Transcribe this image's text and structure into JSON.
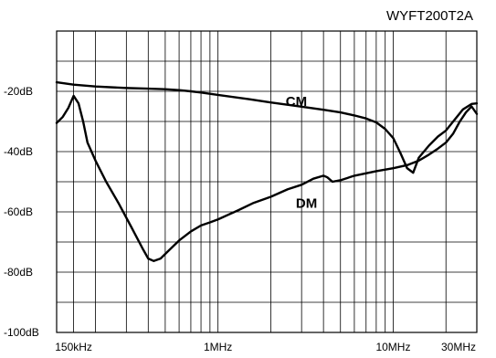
{
  "chart_data": {
    "type": "line",
    "title": "WYFT200T2A",
    "xlabel": "",
    "ylabel": "",
    "xscale": "log",
    "xlim_hz": [
      120000,
      30000000
    ],
    "ylim_db": [
      -100,
      0
    ],
    "y_ticks": [
      {
        "value": -20,
        "label": "-20dB"
      },
      {
        "value": -40,
        "label": "-40dB"
      },
      {
        "value": -60,
        "label": "-60dB"
      },
      {
        "value": -80,
        "label": "-80dB"
      },
      {
        "value": -100,
        "label": "-100dB"
      }
    ],
    "x_ticks": [
      {
        "value": 150000,
        "label": "150kHz"
      },
      {
        "value": 1000000,
        "label": "1MHz"
      },
      {
        "value": 10000000,
        "label": "10MHz"
      },
      {
        "value": 30000000,
        "label": "30MHz"
      }
    ],
    "x_gridlines_hz": [
      150000,
      200000,
      300000,
      400000,
      500000,
      600000,
      700000,
      800000,
      900000,
      1000000,
      2000000,
      3000000,
      4000000,
      5000000,
      6000000,
      7000000,
      8000000,
      9000000,
      10000000,
      20000000,
      30000000
    ],
    "y_gridlines_db": [
      -10,
      -20,
      -30,
      -40,
      -50,
      -60,
      -70,
      -80,
      -90
    ],
    "grid": true,
    "series": [
      {
        "name": "CM",
        "label_at": {
          "x": 2800000,
          "y": -24.8
        },
        "points": [
          [
            120000,
            -17.0
          ],
          [
            150000,
            -17.8
          ],
          [
            200000,
            -18.4
          ],
          [
            300000,
            -18.9
          ],
          [
            400000,
            -19.1
          ],
          [
            500000,
            -19.3
          ],
          [
            600000,
            -19.6
          ],
          [
            700000,
            -20.0
          ],
          [
            800000,
            -20.4
          ],
          [
            1000000,
            -21.2
          ],
          [
            1500000,
            -22.6
          ],
          [
            2000000,
            -23.7
          ],
          [
            3000000,
            -25.1
          ],
          [
            4000000,
            -26.1
          ],
          [
            5000000,
            -27.0
          ],
          [
            6000000,
            -28.0
          ],
          [
            7000000,
            -29.0
          ],
          [
            8000000,
            -30.3
          ],
          [
            9000000,
            -32.5
          ],
          [
            10000000,
            -35.5
          ],
          [
            11000000,
            -40.5
          ],
          [
            12000000,
            -45.5
          ],
          [
            13000000,
            -47.0
          ],
          [
            14000000,
            -42.0
          ],
          [
            16000000,
            -38.0
          ],
          [
            18000000,
            -35.0
          ],
          [
            20000000,
            -33.0
          ],
          [
            22000000,
            -30.0
          ],
          [
            25000000,
            -26.0
          ],
          [
            28000000,
            -24.2
          ],
          [
            30000000,
            -24.0
          ]
        ]
      },
      {
        "name": "DM",
        "label_at": {
          "x": 3200000,
          "y": -58.7
        },
        "points": [
          [
            120000,
            -30.5
          ],
          [
            130000,
            -28.5
          ],
          [
            140000,
            -25.5
          ],
          [
            150000,
            -21.5
          ],
          [
            160000,
            -24.0
          ],
          [
            170000,
            -30.0
          ],
          [
            180000,
            -37.0
          ],
          [
            200000,
            -43.0
          ],
          [
            230000,
            -50.0
          ],
          [
            270000,
            -57.0
          ],
          [
            320000,
            -65.0
          ],
          [
            370000,
            -72.0
          ],
          [
            400000,
            -75.5
          ],
          [
            430000,
            -76.3
          ],
          [
            470000,
            -75.5
          ],
          [
            520000,
            -73.0
          ],
          [
            600000,
            -69.5
          ],
          [
            700000,
            -66.5
          ],
          [
            800000,
            -64.5
          ],
          [
            900000,
            -63.5
          ],
          [
            1000000,
            -62.5
          ],
          [
            1300000,
            -59.5
          ],
          [
            1600000,
            -57.0
          ],
          [
            2000000,
            -55.0
          ],
          [
            2500000,
            -52.5
          ],
          [
            3000000,
            -51.0
          ],
          [
            3500000,
            -49.0
          ],
          [
            4000000,
            -48.0
          ],
          [
            4200000,
            -48.5
          ],
          [
            4500000,
            -50.0
          ],
          [
            5000000,
            -49.5
          ],
          [
            6000000,
            -48.0
          ],
          [
            8000000,
            -46.5
          ],
          [
            10000000,
            -45.5
          ],
          [
            12000000,
            -44.5
          ],
          [
            14000000,
            -43.0
          ],
          [
            16000000,
            -41.0
          ],
          [
            18000000,
            -39.0
          ],
          [
            20000000,
            -37.0
          ],
          [
            22000000,
            -34.0
          ],
          [
            24000000,
            -30.0
          ],
          [
            26000000,
            -27.0
          ],
          [
            28000000,
            -25.0
          ],
          [
            30000000,
            -27.5
          ]
        ]
      }
    ]
  }
}
